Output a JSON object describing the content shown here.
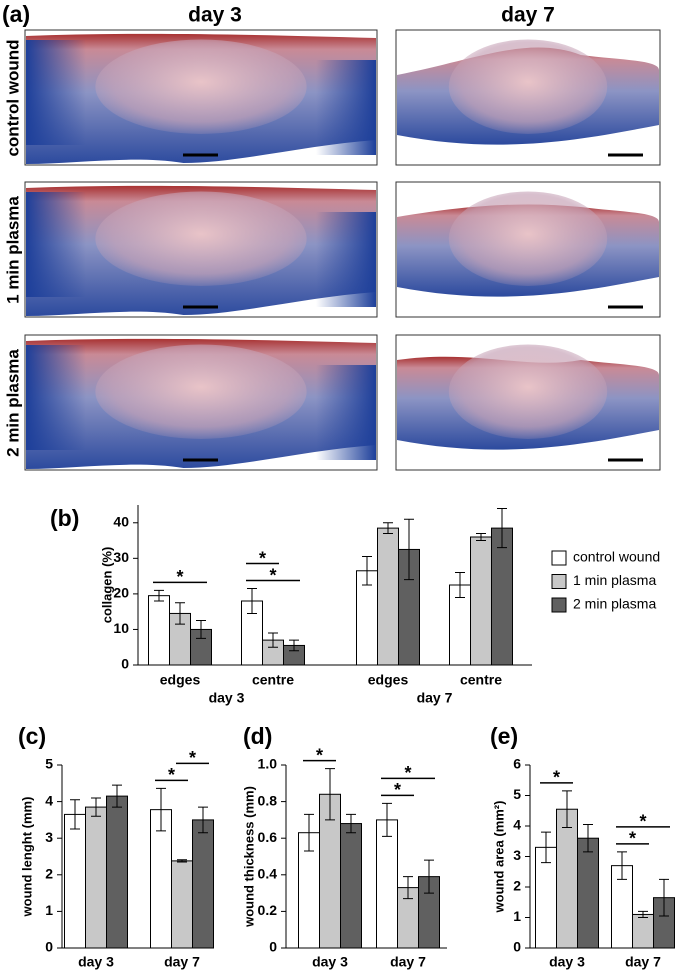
{
  "figure": {
    "panel_label": "(a)",
    "columns": [
      "day 3",
      "day 7"
    ],
    "rows": [
      "control wound",
      "1 min plasma",
      "2 min plasma"
    ]
  },
  "chart_data": [
    {
      "type": "bar",
      "panel_label": "(b)",
      "y_label": "collagen (%)",
      "categories": [
        "edges",
        "centre",
        "edges",
        "centre"
      ],
      "groups": [
        "day 3",
        "day 7"
      ],
      "series": [
        {
          "name": "control wound",
          "color": "#ffffff",
          "values": [
            19.5,
            18,
            26.5,
            22.5
          ],
          "errors": [
            1.5,
            3.5,
            4,
            3.5
          ]
        },
        {
          "name": "1 min plasma",
          "color": "#c8c8c8",
          "values": [
            14.5,
            7,
            38.5,
            36
          ],
          "errors": [
            3,
            2,
            1.5,
            1
          ]
        },
        {
          "name": "2 min plasma",
          "color": "#606060",
          "values": [
            10,
            5.5,
            32.5,
            38.5
          ],
          "errors": [
            2.5,
            1.5,
            8.5,
            5.5
          ]
        }
      ],
      "ylim": [
        0,
        45
      ],
      "yticks": [
        0,
        10,
        20,
        30,
        40
      ],
      "legend": "right",
      "significance": [
        {
          "category": 0,
          "from": 0,
          "to": 2,
          "label": "*"
        },
        {
          "category": 1,
          "from": 0,
          "to": 2,
          "label": "*"
        },
        {
          "category": 1,
          "from": 0,
          "to": 1,
          "label": "*"
        }
      ]
    },
    {
      "type": "bar",
      "panel_label": "(c)",
      "y_label": "wound lenght (mm)",
      "categories": [
        "day 3",
        "day 7"
      ],
      "series": [
        {
          "color": "#ffffff",
          "values": [
            3.65,
            3.78
          ],
          "errors": [
            0.4,
            0.58
          ]
        },
        {
          "color": "#c8c8c8",
          "values": [
            3.85,
            2.38
          ],
          "errors": [
            0.25,
            0.03
          ]
        },
        {
          "color": "#606060",
          "values": [
            4.15,
            3.5
          ],
          "errors": [
            0.3,
            0.35
          ]
        }
      ],
      "ylim": [
        0,
        5
      ],
      "yticks": [
        0,
        1,
        2,
        3,
        4,
        5
      ],
      "significance": [
        {
          "category": 1,
          "from": 0,
          "to": 1,
          "label": "*"
        },
        {
          "category": 1,
          "from": 1,
          "to": 2,
          "label": "*"
        }
      ]
    },
    {
      "type": "bar",
      "panel_label": "(d)",
      "y_label": "wound thickness (mm)",
      "categories": [
        "day 3",
        "day 7"
      ],
      "series": [
        {
          "color": "#ffffff",
          "values": [
            0.63,
            0.7
          ],
          "errors": [
            0.1,
            0.09
          ]
        },
        {
          "color": "#c8c8c8",
          "values": [
            0.84,
            0.33
          ],
          "errors": [
            0.14,
            0.06
          ]
        },
        {
          "color": "#606060",
          "values": [
            0.68,
            0.39
          ],
          "errors": [
            0.05,
            0.09
          ]
        }
      ],
      "ylim": [
        0,
        1
      ],
      "yticks": [
        0,
        0.2,
        0.4,
        0.6,
        0.8,
        {
          "value": 1,
          "label": "1.0"
        }
      ],
      "significance": [
        {
          "category": 0,
          "from": 0,
          "to": 1,
          "label": "*"
        },
        {
          "category": 1,
          "from": 0,
          "to": 1,
          "label": "*"
        },
        {
          "category": 1,
          "from": 0,
          "to": 2,
          "label": "*"
        }
      ]
    },
    {
      "type": "bar",
      "panel_label": "(e)",
      "y_label": "wound area (mm²)",
      "categories": [
        "day 3",
        "day 7"
      ],
      "series": [
        {
          "color": "#ffffff",
          "values": [
            3.3,
            2.7
          ],
          "errors": [
            0.5,
            0.45
          ]
        },
        {
          "color": "#c8c8c8",
          "values": [
            4.55,
            1.1
          ],
          "errors": [
            0.6,
            0.1
          ]
        },
        {
          "color": "#606060",
          "values": [
            3.6,
            1.65
          ],
          "errors": [
            0.45,
            0.6
          ]
        }
      ],
      "ylim": [
        0,
        6
      ],
      "yticks": [
        0,
        1,
        2,
        3,
        4,
        5,
        6
      ],
      "significance": [
        {
          "category": 0,
          "from": 0,
          "to": 1,
          "label": "*"
        },
        {
          "category": 1,
          "from": 0,
          "to": 1,
          "label": "*"
        },
        {
          "category": 1,
          "from": 0,
          "to": 2,
          "label": "*"
        }
      ]
    }
  ]
}
